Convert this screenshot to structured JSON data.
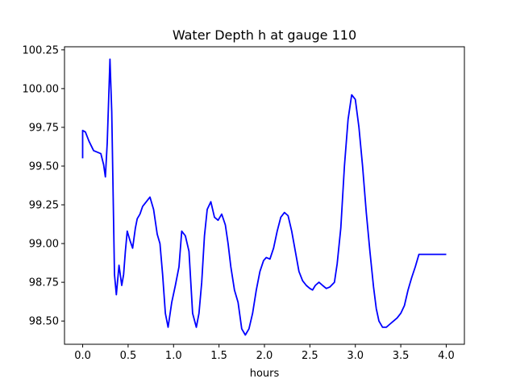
{
  "chart_data": {
    "type": "line",
    "title": "Water Depth h at gauge 110",
    "xlabel": "hours",
    "ylabel": "",
    "xlim": [
      -0.2,
      4.2
    ],
    "ylim": [
      98.35,
      100.27
    ],
    "xticks": [
      0.0,
      0.5,
      1.0,
      1.5,
      2.0,
      2.5,
      3.0,
      3.5,
      4.0
    ],
    "xtick_labels": [
      "0.0",
      "0.5",
      "1.0",
      "1.5",
      "2.0",
      "2.5",
      "3.0",
      "3.5",
      "4.0"
    ],
    "yticks": [
      98.5,
      98.75,
      99.0,
      99.25,
      99.5,
      99.75,
      100.0,
      100.25
    ],
    "ytick_labels": [
      "98.50",
      "98.75",
      "99.00",
      "99.25",
      "99.50",
      "99.75",
      "100.00",
      "100.25"
    ],
    "grid": false,
    "series": [
      {
        "color": "#0000ff",
        "x": [
          0.0,
          0.0,
          0.03,
          0.07,
          0.12,
          0.2,
          0.23,
          0.25,
          0.27,
          0.3,
          0.32,
          0.35,
          0.37,
          0.4,
          0.43,
          0.45,
          0.47,
          0.49,
          0.52,
          0.55,
          0.58,
          0.6,
          0.63,
          0.66,
          0.7,
          0.74,
          0.78,
          0.82,
          0.85,
          0.88,
          0.91,
          0.94,
          0.98,
          1.02,
          1.06,
          1.09,
          1.13,
          1.17,
          1.21,
          1.25,
          1.28,
          1.31,
          1.34,
          1.37,
          1.41,
          1.45,
          1.49,
          1.53,
          1.57,
          1.6,
          1.63,
          1.67,
          1.71,
          1.75,
          1.79,
          1.83,
          1.87,
          1.91,
          1.95,
          1.99,
          2.02,
          2.06,
          2.1,
          2.14,
          2.18,
          2.22,
          2.26,
          2.3,
          2.34,
          2.38,
          2.42,
          2.46,
          2.5,
          2.53,
          2.56,
          2.6,
          2.64,
          2.68,
          2.72,
          2.77,
          2.8,
          2.84,
          2.88,
          2.92,
          2.96,
          3.0,
          3.04,
          3.08,
          3.12,
          3.16,
          3.2,
          3.23,
          3.26,
          3.3,
          3.34,
          3.38,
          3.42,
          3.46,
          3.5,
          3.54,
          3.58,
          3.62,
          3.66,
          3.7,
          3.74,
          3.78,
          3.82,
          3.86,
          3.9,
          3.94,
          3.98,
          4.0
        ],
        "y": [
          99.55,
          99.73,
          99.72,
          99.66,
          99.6,
          99.58,
          99.51,
          99.43,
          99.65,
          100.19,
          99.85,
          98.8,
          98.67,
          98.86,
          98.73,
          98.8,
          98.95,
          99.08,
          99.02,
          98.97,
          99.1,
          99.16,
          99.19,
          99.24,
          99.27,
          99.3,
          99.22,
          99.06,
          99.0,
          98.8,
          98.55,
          98.46,
          98.62,
          98.73,
          98.85,
          99.08,
          99.05,
          98.95,
          98.55,
          98.46,
          98.55,
          98.75,
          99.05,
          99.22,
          99.27,
          99.17,
          99.15,
          99.19,
          99.12,
          99.0,
          98.85,
          98.7,
          98.62,
          98.45,
          98.41,
          98.45,
          98.55,
          98.7,
          98.82,
          98.89,
          98.91,
          98.9,
          98.97,
          99.08,
          99.17,
          99.2,
          99.18,
          99.08,
          98.95,
          98.82,
          98.76,
          98.73,
          98.71,
          98.7,
          98.73,
          98.75,
          98.73,
          98.71,
          98.72,
          98.75,
          98.87,
          99.1,
          99.5,
          99.8,
          99.96,
          99.93,
          99.75,
          99.5,
          99.2,
          98.95,
          98.72,
          98.58,
          98.5,
          98.46,
          98.46,
          98.48,
          98.5,
          98.52,
          98.55,
          98.6,
          98.7,
          98.78,
          98.85,
          98.93,
          98.93,
          98.93,
          98.93,
          98.93,
          98.93,
          98.93,
          98.93,
          98.93
        ]
      }
    ]
  }
}
